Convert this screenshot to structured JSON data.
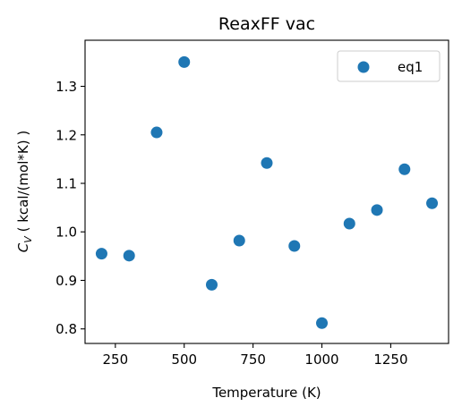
{
  "chart_data": {
    "type": "scatter",
    "title": "ReaxFF vac",
    "xlabel": "Temperature (K)",
    "ylabel_main": "C",
    "ylabel_sub": "V",
    "ylabel_rest": " ( kcal/(mol*K) )",
    "xlim": [
      140,
      1460
    ],
    "ylim": [
      0.77,
      1.395
    ],
    "xticks": [
      250,
      500,
      750,
      1000,
      1250
    ],
    "xtick_labels": [
      "250",
      "500",
      "750",
      "1000",
      "1250"
    ],
    "yticks": [
      0.8,
      0.9,
      1.0,
      1.1,
      1.2,
      1.3
    ],
    "ytick_labels": [
      "0.8",
      "0.9",
      "1.0",
      "1.1",
      "1.2",
      "1.3"
    ],
    "grid": false,
    "legend_position": "top-right",
    "series": [
      {
        "name": "eq1",
        "color": "#1f77b4",
        "x": [
          200,
          300,
          400,
          500,
          600,
          700,
          800,
          900,
          1000,
          1100,
          1200,
          1300,
          1400
        ],
        "y": [
          0.955,
          0.951,
          1.205,
          1.35,
          0.891,
          0.982,
          1.142,
          0.971,
          0.812,
          1.017,
          1.045,
          1.129,
          1.059
        ]
      }
    ]
  }
}
